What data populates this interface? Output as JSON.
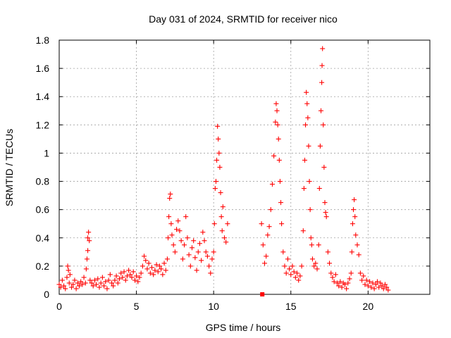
{
  "chart_data": {
    "type": "scatter",
    "title": "Day 031 of 2024, SRMTID for receiver nico",
    "xlabel": "GPS time / hours",
    "ylabel": "SRMTID / TECUs",
    "xlim": [
      0,
      24
    ],
    "ylim": [
      0,
      1.8
    ],
    "xticks": [
      0,
      5,
      10,
      15,
      20
    ],
    "xtick_labels": [
      "0",
      "5",
      "10",
      "15",
      "20"
    ],
    "yticks": [
      0,
      0.2,
      0.4,
      0.6,
      0.8,
      1,
      1.2,
      1.4,
      1.6,
      1.8
    ],
    "ytick_labels": [
      "0",
      "0.2",
      "0.4",
      "0.6",
      "0.8",
      "1",
      "1.2",
      "1.4",
      "1.6",
      "1.8"
    ],
    "grid": true,
    "marker": "+",
    "series_color": "#ff0000",
    "series": [
      {
        "name": "SRMTID",
        "points": [
          [
            0.0,
            0.07
          ],
          [
            0.1,
            0.05
          ],
          [
            0.2,
            0.1
          ],
          [
            0.3,
            0.06
          ],
          [
            0.4,
            0.04
          ],
          [
            0.5,
            0.12
          ],
          [
            0.55,
            0.2
          ],
          [
            0.6,
            0.17
          ],
          [
            0.65,
            0.08
          ],
          [
            0.7,
            0.14
          ],
          [
            0.8,
            0.05
          ],
          [
            0.9,
            0.07
          ],
          [
            1.0,
            0.1
          ],
          [
            1.1,
            0.04
          ],
          [
            1.2,
            0.08
          ],
          [
            1.3,
            0.06
          ],
          [
            1.4,
            0.09
          ],
          [
            1.5,
            0.07
          ],
          [
            1.6,
            0.12
          ],
          [
            1.7,
            0.08
          ],
          [
            1.75,
            0.18
          ],
          [
            1.8,
            0.25
          ],
          [
            1.85,
            0.31
          ],
          [
            1.85,
            0.4
          ],
          [
            1.9,
            0.44
          ],
          [
            1.95,
            0.38
          ],
          [
            2.0,
            0.1
          ],
          [
            2.1,
            0.08
          ],
          [
            2.2,
            0.06
          ],
          [
            2.3,
            0.1
          ],
          [
            2.4,
            0.07
          ],
          [
            2.5,
            0.11
          ],
          [
            2.6,
            0.05
          ],
          [
            2.7,
            0.08
          ],
          [
            2.8,
            0.12
          ],
          [
            2.9,
            0.06
          ],
          [
            3.0,
            0.09
          ],
          [
            3.1,
            0.04
          ],
          [
            3.2,
            0.1
          ],
          [
            3.3,
            0.14
          ],
          [
            3.4,
            0.08
          ],
          [
            3.5,
            0.06
          ],
          [
            3.6,
            0.1
          ],
          [
            3.7,
            0.13
          ],
          [
            3.8,
            0.08
          ],
          [
            3.9,
            0.11
          ],
          [
            4.0,
            0.15
          ],
          [
            4.1,
            0.12
          ],
          [
            4.2,
            0.16
          ],
          [
            4.3,
            0.1
          ],
          [
            4.4,
            0.13
          ],
          [
            4.5,
            0.17
          ],
          [
            4.6,
            0.14
          ],
          [
            4.7,
            0.12
          ],
          [
            4.8,
            0.16
          ],
          [
            4.9,
            0.1
          ],
          [
            5.0,
            0.13
          ],
          [
            5.1,
            0.09
          ],
          [
            5.2,
            0.12
          ],
          [
            5.3,
            0.15
          ],
          [
            5.4,
            0.2
          ],
          [
            5.5,
            0.27
          ],
          [
            5.6,
            0.24
          ],
          [
            5.7,
            0.18
          ],
          [
            5.8,
            0.22
          ],
          [
            5.9,
            0.15
          ],
          [
            6.0,
            0.19
          ],
          [
            6.1,
            0.14
          ],
          [
            6.2,
            0.17
          ],
          [
            6.3,
            0.21
          ],
          [
            6.4,
            0.16
          ],
          [
            6.5,
            0.2
          ],
          [
            6.6,
            0.18
          ],
          [
            6.7,
            0.14
          ],
          [
            6.8,
            0.22
          ],
          [
            6.9,
            0.17
          ],
          [
            7.0,
            0.25
          ],
          [
            7.05,
            0.4
          ],
          [
            7.1,
            0.55
          ],
          [
            7.15,
            0.68
          ],
          [
            7.2,
            0.71
          ],
          [
            7.25,
            0.5
          ],
          [
            7.3,
            0.42
          ],
          [
            7.4,
            0.35
          ],
          [
            7.5,
            0.3
          ],
          [
            7.6,
            0.46
          ],
          [
            7.7,
            0.52
          ],
          [
            7.8,
            0.45
          ],
          [
            7.9,
            0.38
          ],
          [
            8.0,
            0.25
          ],
          [
            8.1,
            0.35
          ],
          [
            8.2,
            0.55
          ],
          [
            8.3,
            0.4
          ],
          [
            8.4,
            0.28
          ],
          [
            8.5,
            0.2
          ],
          [
            8.6,
            0.33
          ],
          [
            8.7,
            0.38
          ],
          [
            8.8,
            0.26
          ],
          [
            8.9,
            0.17
          ],
          [
            9.0,
            0.3
          ],
          [
            9.1,
            0.36
          ],
          [
            9.2,
            0.24
          ],
          [
            9.3,
            0.44
          ],
          [
            9.4,
            0.38
          ],
          [
            9.5,
            0.3
          ],
          [
            9.6,
            0.27
          ],
          [
            9.7,
            0.2
          ],
          [
            9.8,
            0.15
          ],
          [
            9.9,
            0.25
          ],
          [
            10.0,
            0.3
          ],
          [
            10.05,
            0.5
          ],
          [
            10.1,
            0.75
          ],
          [
            10.15,
            0.8
          ],
          [
            10.2,
            0.95
          ],
          [
            10.25,
            1.19
          ],
          [
            10.3,
            1.1
          ],
          [
            10.35,
            1.0
          ],
          [
            10.4,
            0.9
          ],
          [
            10.45,
            0.72
          ],
          [
            10.5,
            0.55
          ],
          [
            10.55,
            0.45
          ],
          [
            10.6,
            0.62
          ],
          [
            10.7,
            0.4
          ],
          [
            10.8,
            0.37
          ],
          [
            10.9,
            0.5
          ],
          [
            13.1,
            0.5
          ],
          [
            13.2,
            0.35
          ],
          [
            13.3,
            0.22
          ],
          [
            13.4,
            0.27
          ],
          [
            13.5,
            0.42
          ],
          [
            13.6,
            0.48
          ],
          [
            13.7,
            0.6
          ],
          [
            13.8,
            0.78
          ],
          [
            13.9,
            0.98
          ],
          [
            14.0,
            1.22
          ],
          [
            14.05,
            1.35
          ],
          [
            14.1,
            1.3
          ],
          [
            14.15,
            1.2
          ],
          [
            14.2,
            1.1
          ],
          [
            14.25,
            0.95
          ],
          [
            14.3,
            0.8
          ],
          [
            14.35,
            0.65
          ],
          [
            14.4,
            0.5
          ],
          [
            14.5,
            0.3
          ],
          [
            14.6,
            0.2
          ],
          [
            14.7,
            0.15
          ],
          [
            14.8,
            0.25
          ],
          [
            14.9,
            0.18
          ],
          [
            15.0,
            0.14
          ],
          [
            15.1,
            0.2
          ],
          [
            15.2,
            0.16
          ],
          [
            15.3,
            0.12
          ],
          [
            15.4,
            0.15
          ],
          [
            15.5,
            0.1
          ],
          [
            15.6,
            0.13
          ],
          [
            15.7,
            0.2
          ],
          [
            15.8,
            0.45
          ],
          [
            15.85,
            0.75
          ],
          [
            15.9,
            0.95
          ],
          [
            15.95,
            1.2
          ],
          [
            16.0,
            1.43
          ],
          [
            16.05,
            1.35
          ],
          [
            16.1,
            1.25
          ],
          [
            16.15,
            1.05
          ],
          [
            16.2,
            0.8
          ],
          [
            16.25,
            0.6
          ],
          [
            16.3,
            0.4
          ],
          [
            16.35,
            0.35
          ],
          [
            16.4,
            0.25
          ],
          [
            16.5,
            0.2
          ],
          [
            16.6,
            0.22
          ],
          [
            16.7,
            0.18
          ],
          [
            16.8,
            0.35
          ],
          [
            16.85,
            0.75
          ],
          [
            16.9,
            1.05
          ],
          [
            16.95,
            1.3
          ],
          [
            17.0,
            1.5
          ],
          [
            17.02,
            1.62
          ],
          [
            17.05,
            1.74
          ],
          [
            17.1,
            1.2
          ],
          [
            17.15,
            0.9
          ],
          [
            17.2,
            0.65
          ],
          [
            17.25,
            0.58
          ],
          [
            17.3,
            0.55
          ],
          [
            17.4,
            0.3
          ],
          [
            17.5,
            0.22
          ],
          [
            17.6,
            0.15
          ],
          [
            17.7,
            0.12
          ],
          [
            17.8,
            0.09
          ],
          [
            17.9,
            0.14
          ],
          [
            18.0,
            0.08
          ],
          [
            18.1,
            0.06
          ],
          [
            18.2,
            0.09
          ],
          [
            18.3,
            0.05
          ],
          [
            18.4,
            0.08
          ],
          [
            18.5,
            0.07
          ],
          [
            18.6,
            0.04
          ],
          [
            18.7,
            0.08
          ],
          [
            18.8,
            0.11
          ],
          [
            18.9,
            0.15
          ],
          [
            18.95,
            0.3
          ],
          [
            19.0,
            0.5
          ],
          [
            19.05,
            0.6
          ],
          [
            19.1,
            0.67
          ],
          [
            19.15,
            0.55
          ],
          [
            19.2,
            0.42
          ],
          [
            19.3,
            0.35
          ],
          [
            19.4,
            0.28
          ],
          [
            19.5,
            0.15
          ],
          [
            19.6,
            0.1
          ],
          [
            19.7,
            0.13
          ],
          [
            19.8,
            0.07
          ],
          [
            19.9,
            0.1
          ],
          [
            20.0,
            0.06
          ],
          [
            20.1,
            0.09
          ],
          [
            20.2,
            0.05
          ],
          [
            20.3,
            0.08
          ],
          [
            20.4,
            0.04
          ],
          [
            20.5,
            0.07
          ],
          [
            20.6,
            0.09
          ],
          [
            20.7,
            0.05
          ],
          [
            20.8,
            0.08
          ],
          [
            20.9,
            0.06
          ],
          [
            21.0,
            0.04
          ],
          [
            21.1,
            0.07
          ],
          [
            21.2,
            0.05
          ],
          [
            21.3,
            0.03
          ]
        ]
      }
    ],
    "annotations": [
      {
        "type": "square_marker",
        "x": 13.15,
        "y": 0.0
      }
    ]
  }
}
